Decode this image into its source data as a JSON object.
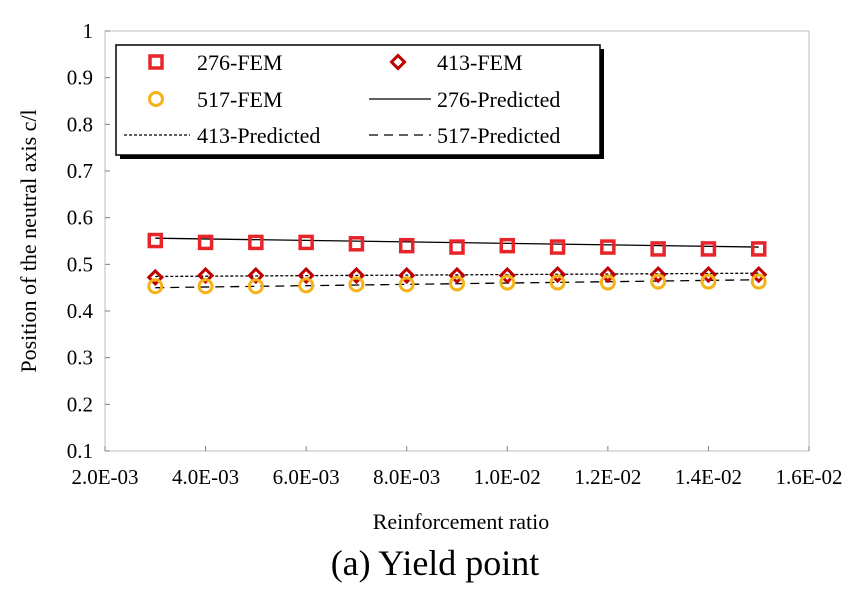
{
  "chart_data": {
    "type": "scatter",
    "caption": "(a) Yield point",
    "xlabel": "Reinforcement  ratio",
    "ylabel": "Position  of the neutral  axis c/l",
    "xlim": [
      0.002,
      0.016
    ],
    "ylim": [
      0.1,
      1.0
    ],
    "x_ticks": [
      0.002,
      0.004,
      0.006,
      0.008,
      0.01,
      0.012,
      0.014,
      0.016
    ],
    "x_tick_labels": [
      "2.0E-03",
      "4.0E-03",
      "6.0E-03",
      "8.0E-03",
      "1.0E-02",
      "1.2E-02",
      "1.4E-02",
      "1.6E-02"
    ],
    "y_ticks": [
      0.1,
      0.2,
      0.3,
      0.4,
      0.5,
      0.6,
      0.7,
      0.8,
      0.9,
      1.0
    ],
    "y_tick_labels": [
      "0.1",
      "0.2",
      "0.3",
      "0.4",
      "0.5",
      "0.6",
      "0.7",
      "0.8",
      "0.9",
      "1"
    ],
    "grid": false,
    "legend_position": "top-left",
    "series": [
      {
        "name": "276-FEM",
        "kind": "marker",
        "marker": "square",
        "color": "#e8242b",
        "x": [
          0.003,
          0.004,
          0.005,
          0.006,
          0.007,
          0.008,
          0.009,
          0.01,
          0.011,
          0.012,
          0.013,
          0.014,
          0.015
        ],
        "y": [
          0.551,
          0.547,
          0.547,
          0.547,
          0.544,
          0.54,
          0.537,
          0.54,
          0.537,
          0.537,
          0.533,
          0.533,
          0.533
        ]
      },
      {
        "name": "413-FEM",
        "kind": "marker",
        "marker": "diamond",
        "color": "#c00000",
        "x": [
          0.003,
          0.004,
          0.005,
          0.006,
          0.007,
          0.008,
          0.009,
          0.01,
          0.011,
          0.012,
          0.013,
          0.014,
          0.015
        ],
        "y": [
          0.472,
          0.476,
          0.476,
          0.476,
          0.476,
          0.476,
          0.476,
          0.476,
          0.478,
          0.478,
          0.478,
          0.478,
          0.478
        ]
      },
      {
        "name": "517-FEM",
        "kind": "marker",
        "marker": "circle",
        "color": "#f5b31a",
        "x": [
          0.003,
          0.004,
          0.005,
          0.006,
          0.007,
          0.008,
          0.009,
          0.01,
          0.011,
          0.012,
          0.013,
          0.014,
          0.015
        ],
        "y": [
          0.453,
          0.453,
          0.453,
          0.455,
          0.457,
          0.457,
          0.459,
          0.461,
          0.461,
          0.461,
          0.463,
          0.463,
          0.463
        ]
      },
      {
        "name": "276-Predicted",
        "kind": "line",
        "dash": "solid",
        "color": "#000000",
        "x": [
          0.003,
          0.015
        ],
        "y": [
          0.556,
          0.537
        ]
      },
      {
        "name": "413-Predicted",
        "kind": "line",
        "dash": "dotted",
        "color": "#000000",
        "x": [
          0.003,
          0.015
        ],
        "y": [
          0.474,
          0.481
        ]
      },
      {
        "name": "517-Predicted",
        "kind": "line",
        "dash": "dashed",
        "color": "#000000",
        "x": [
          0.003,
          0.015
        ],
        "y": [
          0.45,
          0.467
        ]
      }
    ]
  }
}
